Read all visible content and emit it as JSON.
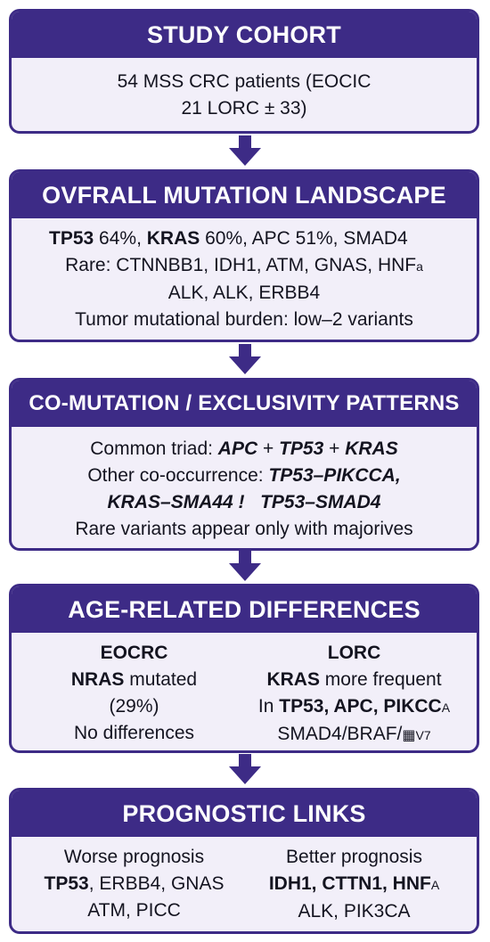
{
  "colors": {
    "header_bg": "#3d2b86",
    "box_bg": "#f2eff9",
    "arrow": "#3d2b86",
    "text": "#141420"
  },
  "cohort": {
    "title": "STUDY COHORT",
    "line1": "54 MSS CRC patients (EOCIC",
    "line2": "21 LORC ± 33)"
  },
  "landscape": {
    "title": "OVFRALL MUTATION LANDSCAPE",
    "l1_tp53": "TP53",
    "l1_tp53_val": " 64%, ",
    "l1_kras": "KRAS",
    "l1_rest": " 60%, APC 51%, SMAD4",
    "line2": "Rare: CTNNBB1, IDH1, ATM, GNAS, HNF",
    "line2_sub": "a",
    "line3": "ALK, ALK, ERBB4",
    "line4": "Tumor mutational burden: low–2 variants"
  },
  "comutation": {
    "title": "CO-MUTATION / EXCLUSIVITY PATTERNS",
    "l1_prefix": "Common triad: ",
    "l1_apc": "APC",
    "l1_plus1": " + ",
    "l1_tp53": "TP53",
    "l1_plus2": " + ",
    "l1_kras": "KRAS",
    "l2_prefix": "Other co-occurrence: ",
    "l2_pair": "TP53–PIKCCA,",
    "l3_pair1": "KRAS–SMA44 !",
    "l3_pair2": "TP53–SMAD4",
    "line4": "Rare variants appear only with majorives"
  },
  "age": {
    "title": "AGE-RELATED DIFFERENCES",
    "left": {
      "heading": "EOCRC",
      "nras": "NRAS",
      "nras_rest": " mutated",
      "pct": "(29%)",
      "nodiff": "No differences"
    },
    "right": {
      "heading": "LORC",
      "kras": "KRAS",
      "kras_rest": " more frequent",
      "in_prefix": "In ",
      "in_genes": "TP53, APC, PIKCC",
      "in_sub": "A",
      "line4": "SMAD4/BRAF/",
      "line4_sub": "V7"
    }
  },
  "prognostic": {
    "title": "PROGNOSTIC LINKS",
    "left": {
      "heading": "Worse prognosis",
      "genes_bold": "TP53",
      "genes_rest": ", ERBB4, GNAS",
      "line3": "ATM, PICC"
    },
    "right": {
      "heading": "Better prognosis",
      "genes": "IDH1, CTTN1, HNF",
      "genes_sub": "A",
      "line3": "ALK, PIK3CA"
    }
  }
}
